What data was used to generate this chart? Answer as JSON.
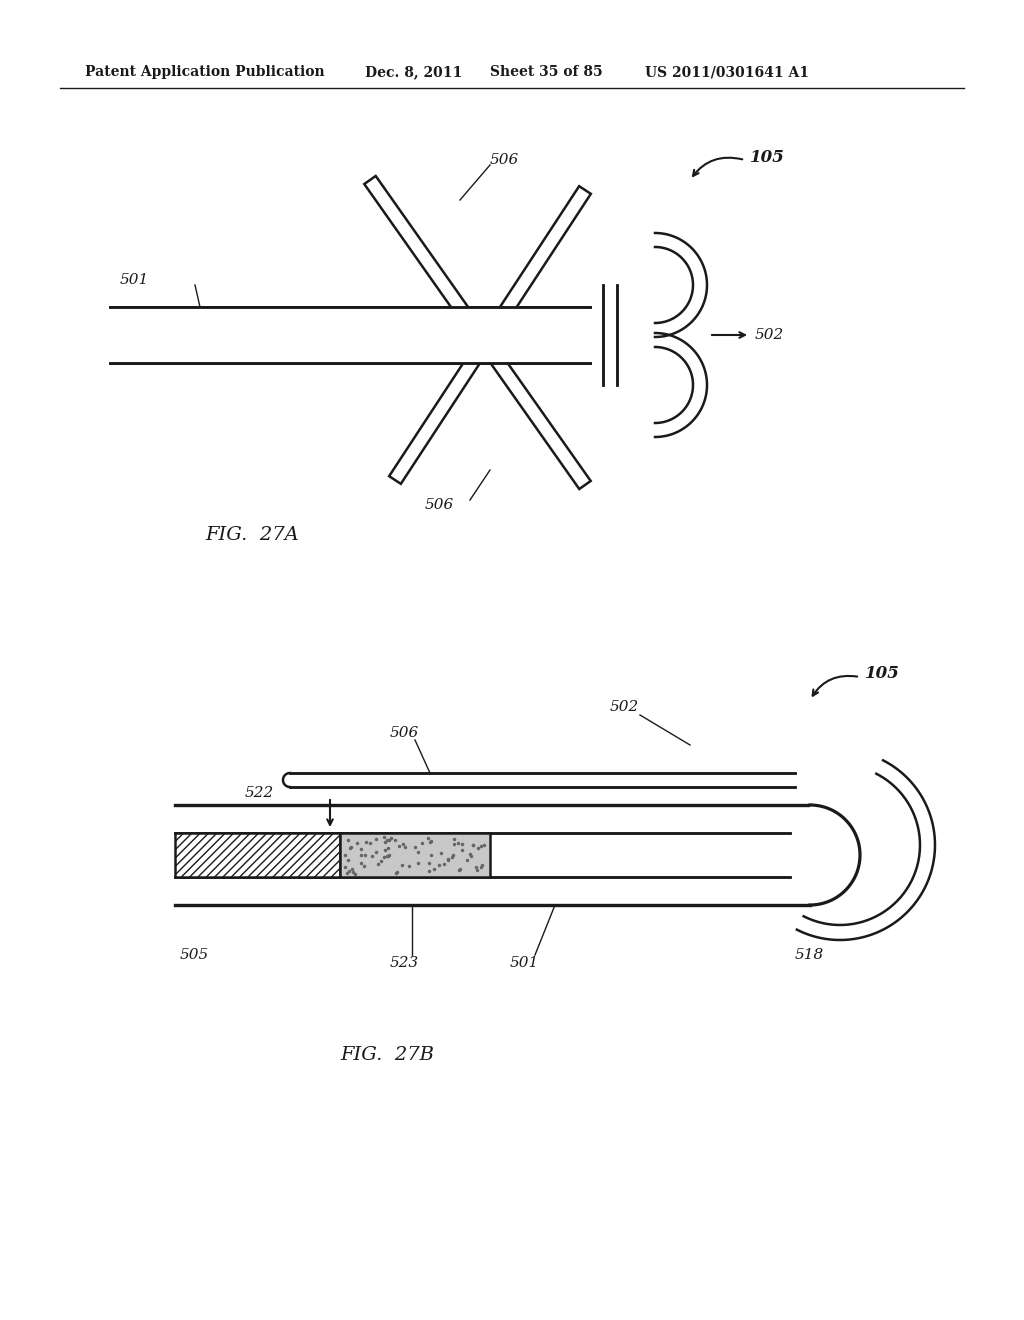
{
  "bg_color": "#ffffff",
  "header_text": "Patent Application Publication",
  "header_date": "Dec. 8, 2011",
  "header_sheet": "Sheet 35 of 85",
  "header_patent": "US 2011/0301641 A1",
  "fig_label_a": "FIG.  27A",
  "fig_label_b": "FIG.  27B",
  "line_color": "#1a1a1a"
}
